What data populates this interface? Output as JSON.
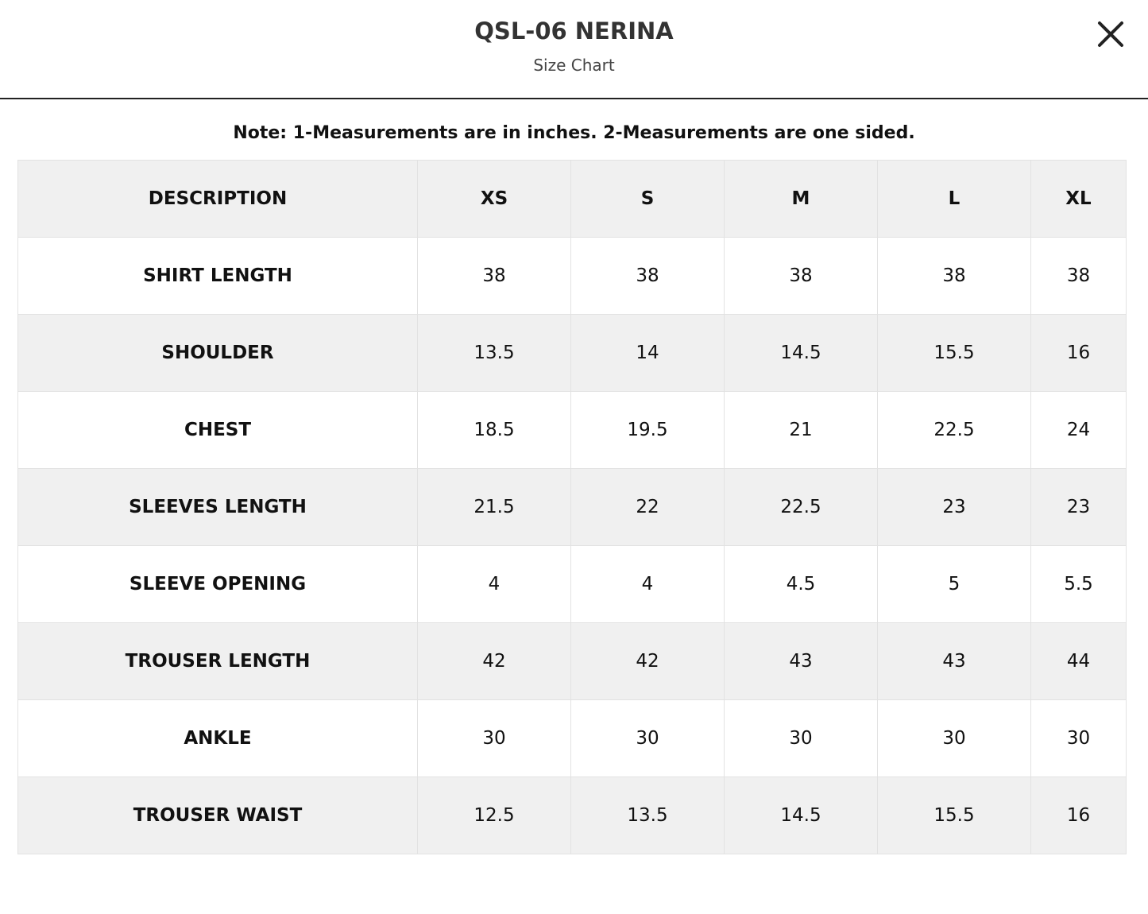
{
  "header": {
    "title": "QSL-06 NERINA",
    "subtitle": "Size Chart"
  },
  "note": "Note: 1-Measurements are in inches. 2-Measurements are one sided.",
  "table": {
    "columns": [
      "DESCRIPTION",
      "XS",
      "S",
      "M",
      "L",
      "XL"
    ],
    "rows": [
      [
        "SHIRT LENGTH",
        38,
        38,
        38,
        38,
        38
      ],
      [
        "SHOULDER",
        13.5,
        14,
        14.5,
        15.5,
        16
      ],
      [
        "CHEST",
        18.5,
        19.5,
        21,
        22.5,
        24
      ],
      [
        "SLEEVES LENGTH",
        21.5,
        22,
        22.5,
        23,
        23
      ],
      [
        "SLEEVE OPENING",
        4,
        4,
        4.5,
        5,
        5.5
      ],
      [
        "TROUSER LENGTH",
        42,
        42,
        43,
        43,
        44
      ],
      [
        "ANKLE",
        30,
        30,
        30,
        30,
        30
      ],
      [
        "TROUSER WAIST",
        12.5,
        13.5,
        14.5,
        15.5,
        16
      ]
    ]
  }
}
